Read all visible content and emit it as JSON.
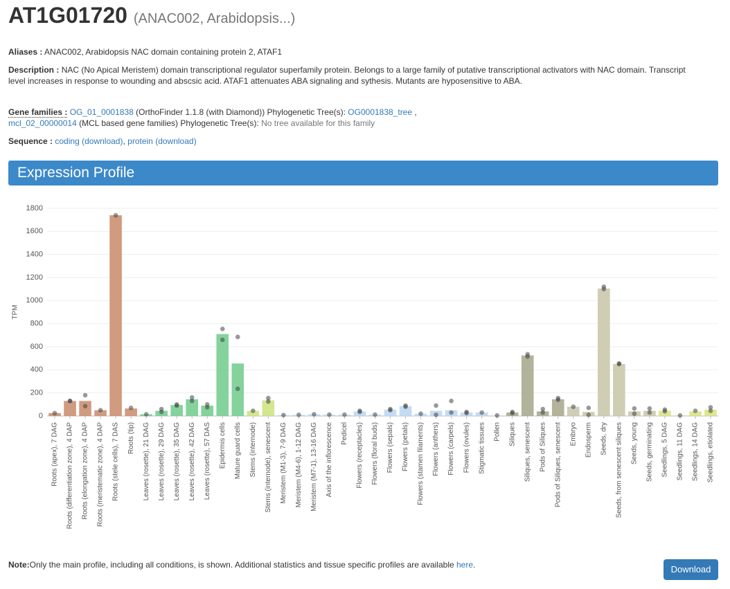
{
  "header": {
    "title": "AT1G01720",
    "subtitle": "(ANAC002, Arabidopsis...)"
  },
  "aliases": {
    "label": "Aliases :",
    "text": "ANAC002, Arabidopsis NAC domain containing protein 2, ATAF1"
  },
  "description": {
    "label": "Description :",
    "text": "NAC (No Apical Meristem) domain transcriptional regulator superfamily protein. Belongs to a large family of putative transcriptional activators with NAC domain. Transcript level increases in response to wounding and abscsic acid. ATAF1 attenuates ABA signaling and sythesis. Mutants are hyposensitive to ABA."
  },
  "gene_families": {
    "label": "Gene families :",
    "family1": "OG_01_0001838",
    "family1_method": "(OrthoFinder 1.1.8 (with Diamond)) Phylogenetic Tree(s):",
    "tree1": "OG0001838_tree",
    "separator": ",",
    "family2": "mcl_02_00000014",
    "family2_method": "(MCL based gene families) Phylogenetic Tree(s):",
    "tree2_note": "No tree available for this family"
  },
  "sequence": {
    "label": "Sequence :",
    "coding": "coding",
    "coding_download": "(download)",
    "separator": ",",
    "protein": "protein",
    "protein_download": "(download)"
  },
  "section": {
    "title": "Expression Profile"
  },
  "chart_data": {
    "type": "bar",
    "ylabel": "TPM",
    "ylim": [
      0,
      1800
    ],
    "yticks": [
      0,
      200,
      400,
      600,
      800,
      1000,
      1200,
      1400,
      1600,
      1800
    ],
    "categories": [
      "Roots (apex), 7 DAG",
      "Roots (differentiation zone), 4 DAP",
      "Roots (elongation zone), 4 DAP",
      "Roots (meristematic zone), 4 DAP",
      "Roots (stele cells), 7 DAS",
      "Roots (tip)",
      "Leaves (rosette), 21 DAG",
      "Leaves (rosette), 29 DAG",
      "Leaves (rosette), 35 DAG",
      "Leaves (rosette), 42 DAG",
      "Leaves (rosette), 57 DAS",
      "Epidermis cells",
      "Mature guard cells",
      "Stems (internode)",
      "Stems (internode), senescent",
      "Meristem (M1-3), 7-9 DAG",
      "Meristem (M4-6), 1-12 DAG",
      "Meristem (M7-1), 13-16 DAG",
      "Axis of the inflorescence",
      "Pedicel",
      "Flowers (receptacles)",
      "Flowers (floral buds)",
      "Flowers (sepals)",
      "Flowers (petals)",
      "Flowers (stamen filaments)",
      "Flowers (anthers)",
      "Flowers (carpels)",
      "Flowers (ovules)",
      "Stigmatic tissues",
      "Pollen",
      "Siliques",
      "Siliques, senescent",
      "Pods of Siliques",
      "Pods of Siliques, senescent",
      "Embryo",
      "Endosperm",
      "Seeds, dry",
      "Seeds, from senescent siliques",
      "Seeds, young",
      "Seeds, germinating",
      "Seedlings, 5 DAG",
      "Seedlings, 11 DAG",
      "Seedlings, 14 DAG",
      "Seedlings, etiolated"
    ],
    "values": [
      25,
      130,
      130,
      50,
      1740,
      65,
      15,
      45,
      95,
      145,
      90,
      710,
      455,
      45,
      135,
      8,
      10,
      15,
      12,
      12,
      40,
      12,
      55,
      85,
      20,
      45,
      50,
      30,
      30,
      5,
      30,
      525,
      40,
      145,
      80,
      35,
      1105,
      450,
      40,
      45,
      45,
      5,
      40,
      55
    ],
    "replicates": [
      [
        25
      ],
      [
        130,
        130
      ],
      [
        180,
        85
      ],
      [
        50
      ],
      [
        1740
      ],
      [
        70
      ],
      [
        15
      ],
      [
        60,
        35
      ],
      [
        100,
        90
      ],
      [
        160,
        130
      ],
      [
        100,
        75
      ],
      [
        755,
        660
      ],
      [
        685,
        235
      ],
      [
        45
      ],
      [
        155,
        125
      ],
      [
        8
      ],
      [
        10
      ],
      [
        15
      ],
      [
        12
      ],
      [
        12
      ],
      [
        45,
        35
      ],
      [
        12
      ],
      [
        60,
        50
      ],
      [
        90,
        80
      ],
      [
        20
      ],
      [
        90,
        10
      ],
      [
        130,
        30
      ],
      [
        35,
        25
      ],
      [
        30
      ],
      [
        5
      ],
      [
        35,
        25
      ],
      [
        535,
        515
      ],
      [
        60,
        30
      ],
      [
        155,
        140
      ],
      [
        80
      ],
      [
        70,
        10
      ],
      [
        1120,
        1100
      ],
      [
        455,
        450
      ],
      [
        65,
        20
      ],
      [
        65,
        30
      ],
      [
        55,
        40
      ],
      [
        5
      ],
      [
        45
      ],
      [
        75,
        45
      ]
    ],
    "colors": [
      "#c9896a",
      "#c9896a",
      "#c9896a",
      "#c9896a",
      "#c9896a",
      "#c9896a",
      "#6fcb8c",
      "#6fcb8c",
      "#6fcb8c",
      "#6fcb8c",
      "#6fcb8c",
      "#6fcb8c",
      "#6fcb8c",
      "#cbe27c",
      "#cbe27c",
      "#b9d6f2",
      "#b9d6f2",
      "#b9d6f2",
      "#b9d6f2",
      "#b9d6f2",
      "#b9d6f2",
      "#b9d6f2",
      "#b9d6f2",
      "#b9d6f2",
      "#b9d6f2",
      "#b9d6f2",
      "#b9d6f2",
      "#b9d6f2",
      "#b9d6f2",
      "#b9d6f2",
      "#a6a68a",
      "#a6a68a",
      "#a6a68a",
      "#a6a68a",
      "#c8c4a8",
      "#c8c4a8",
      "#c8c4a8",
      "#c8c4a8",
      "#c8c4a8",
      "#c8c4a8",
      "#d9e07e",
      "#d9e07e",
      "#d9e07e",
      "#d9e07e"
    ]
  },
  "note": {
    "label": "Note:",
    "text": "Only the main profile, including all conditions, is shown. Additional statistics and tissue specific profiles are available",
    "link": "here",
    "end": "."
  },
  "button": {
    "label": "Download"
  }
}
